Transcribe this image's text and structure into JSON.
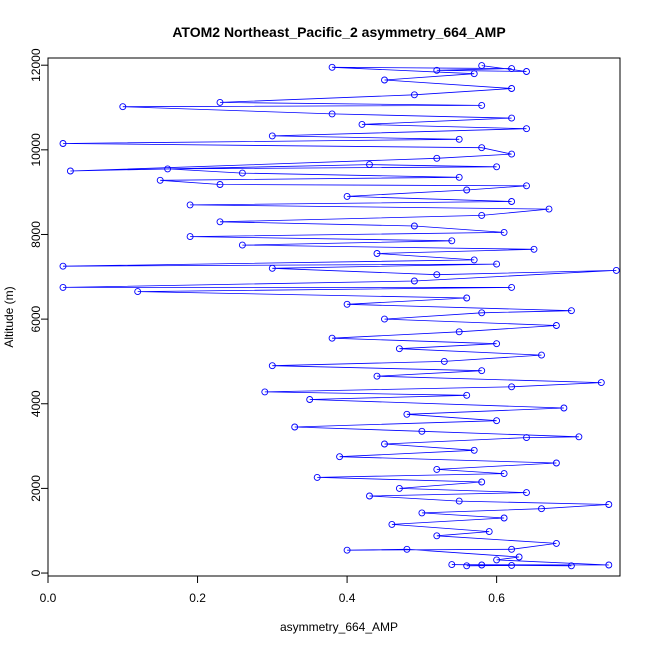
{
  "chart_data": {
    "type": "line",
    "title": "ATOM2 Northeast_Pacific_2 asymmetry_664_AMP",
    "xlabel": "asymmetry_664_AMP",
    "ylabel": "Altitude (m)",
    "xlim": [
      0.0,
      0.765
    ],
    "ylim": [
      -70,
      12170
    ],
    "x_ticks": [
      0.0,
      0.2,
      0.4,
      0.6
    ],
    "x_tick_labels": [
      "0.0",
      "0.2",
      "0.4",
      "0.6"
    ],
    "y_ticks": [
      0,
      2000,
      4000,
      6000,
      8000,
      10000,
      12000
    ],
    "y_tick_labels": [
      "0",
      "2000",
      "4000",
      "6000",
      "8000",
      "10000",
      "12000"
    ],
    "grid": false,
    "legend": "none",
    "series": [
      {
        "color": "#0000ff",
        "marker": "open-circle",
        "points": [
          [
            0.56,
            170
          ],
          [
            0.62,
            180
          ],
          [
            0.7,
            170
          ],
          [
            0.58,
            190
          ],
          [
            0.54,
            200
          ],
          [
            0.75,
            190
          ],
          [
            0.6,
            310
          ],
          [
            0.63,
            380
          ],
          [
            0.48,
            560
          ],
          [
            0.4,
            540
          ],
          [
            0.62,
            560
          ],
          [
            0.68,
            700
          ],
          [
            0.52,
            880
          ],
          [
            0.59,
            980
          ],
          [
            0.46,
            1150
          ],
          [
            0.61,
            1300
          ],
          [
            0.5,
            1420
          ],
          [
            0.66,
            1520
          ],
          [
            0.75,
            1620
          ],
          [
            0.55,
            1700
          ],
          [
            0.43,
            1820
          ],
          [
            0.64,
            1900
          ],
          [
            0.47,
            2000
          ],
          [
            0.58,
            2150
          ],
          [
            0.36,
            2260
          ],
          [
            0.61,
            2350
          ],
          [
            0.52,
            2450
          ],
          [
            0.68,
            2600
          ],
          [
            0.39,
            2750
          ],
          [
            0.57,
            2900
          ],
          [
            0.45,
            3050
          ],
          [
            0.64,
            3200
          ],
          [
            0.71,
            3220
          ],
          [
            0.5,
            3350
          ],
          [
            0.33,
            3450
          ],
          [
            0.6,
            3600
          ],
          [
            0.48,
            3750
          ],
          [
            0.69,
            3900
          ],
          [
            0.35,
            4100
          ],
          [
            0.56,
            4200
          ],
          [
            0.29,
            4280
          ],
          [
            0.62,
            4400
          ],
          [
            0.74,
            4500
          ],
          [
            0.44,
            4650
          ],
          [
            0.58,
            4780
          ],
          [
            0.3,
            4900
          ],
          [
            0.53,
            5000
          ],
          [
            0.66,
            5150
          ],
          [
            0.47,
            5300
          ],
          [
            0.6,
            5420
          ],
          [
            0.38,
            5550
          ],
          [
            0.55,
            5700
          ],
          [
            0.68,
            5850
          ],
          [
            0.45,
            6000
          ],
          [
            0.58,
            6150
          ],
          [
            0.7,
            6200
          ],
          [
            0.4,
            6350
          ],
          [
            0.56,
            6500
          ],
          [
            0.12,
            6650
          ],
          [
            0.62,
            6750
          ],
          [
            0.02,
            6750
          ],
          [
            0.49,
            6900
          ],
          [
            0.76,
            7150
          ],
          [
            0.52,
            7050
          ],
          [
            0.3,
            7200
          ],
          [
            0.6,
            7300
          ],
          [
            0.02,
            7250
          ],
          [
            0.57,
            7400
          ],
          [
            0.44,
            7550
          ],
          [
            0.65,
            7650
          ],
          [
            0.26,
            7750
          ],
          [
            0.54,
            7850
          ],
          [
            0.19,
            7950
          ],
          [
            0.61,
            8050
          ],
          [
            0.49,
            8200
          ],
          [
            0.23,
            8300
          ],
          [
            0.58,
            8450
          ],
          [
            0.67,
            8600
          ],
          [
            0.19,
            8700
          ],
          [
            0.62,
            8780
          ],
          [
            0.4,
            8900
          ],
          [
            0.56,
            9050
          ],
          [
            0.64,
            9150
          ],
          [
            0.23,
            9180
          ],
          [
            0.15,
            9280
          ],
          [
            0.55,
            9350
          ],
          [
            0.26,
            9450
          ],
          [
            0.16,
            9550
          ],
          [
            0.6,
            9600
          ],
          [
            0.43,
            9650
          ],
          [
            0.03,
            9500
          ],
          [
            0.52,
            9800
          ],
          [
            0.62,
            9900
          ],
          [
            0.58,
            10050
          ],
          [
            0.02,
            10150
          ],
          [
            0.55,
            10250
          ],
          [
            0.3,
            10330
          ],
          [
            0.64,
            10500
          ],
          [
            0.42,
            10600
          ],
          [
            0.62,
            10750
          ],
          [
            0.38,
            10850
          ],
          [
            0.1,
            11020
          ],
          [
            0.58,
            11050
          ],
          [
            0.23,
            11120
          ],
          [
            0.49,
            11300
          ],
          [
            0.62,
            11450
          ],
          [
            0.45,
            11650
          ],
          [
            0.57,
            11800
          ],
          [
            0.38,
            11950
          ],
          [
            0.62,
            11920
          ],
          [
            0.52,
            11880
          ],
          [
            0.64,
            11850
          ],
          [
            0.58,
            11990
          ]
        ]
      }
    ]
  }
}
